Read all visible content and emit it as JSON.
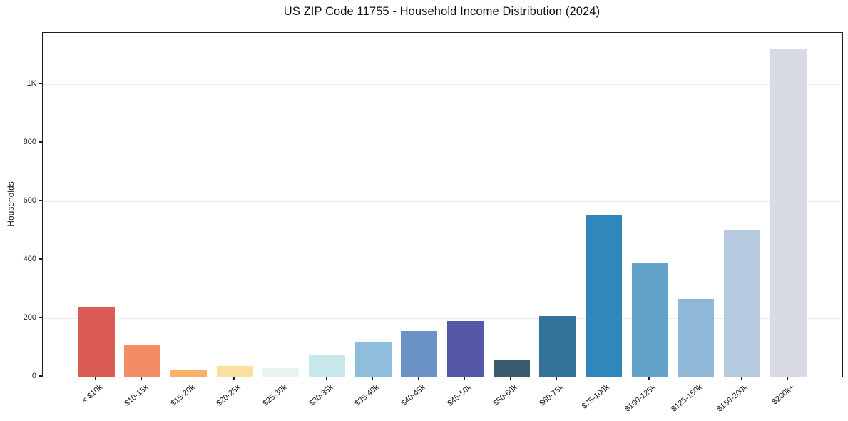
{
  "chart_data": {
    "type": "bar",
    "title": "US ZIP Code 11755 - Household Income Distribution (2024)",
    "xlabel": "",
    "ylabel": "Households",
    "categories": [
      "< $10k",
      "$10-15k",
      "$15-20k",
      "$20-25k",
      "$25-30k",
      "$30-35k",
      "$35-40k",
      "$40-45k",
      "$45-50k",
      "$50-60k",
      "$60-75k",
      "$75-100k",
      "$100-125k",
      "$125-150k",
      "$150-200k",
      "$200k+"
    ],
    "values": [
      238,
      108,
      22,
      36,
      30,
      73,
      120,
      157,
      190,
      58,
      208,
      553,
      391,
      267,
      503,
      1120
    ],
    "bar_colors": [
      "#d95b52",
      "#f28d65",
      "#f7b168",
      "#fbdf9e",
      "#e9f4ef",
      "#c8e7eb",
      "#8fbedd",
      "#6a92c6",
      "#5657a8",
      "#3a5c6f",
      "#327399",
      "#3087bb",
      "#61a3cb",
      "#8fb8d8",
      "#b5c9df",
      "#d8dae6"
    ],
    "yticks": {
      "values": [
        0,
        200,
        400,
        600,
        800,
        1000
      ],
      "labels": [
        "0",
        "200",
        "400",
        "600",
        "800",
        "1K"
      ]
    },
    "ylim": [
      0,
      1176
    ],
    "grid": "horizontal",
    "legend": "none"
  },
  "style": {
    "axis_color": "#1c1c28",
    "grid_color": "#ebebf1",
    "text_color": "#1a1a1a",
    "background": "#ffffff"
  }
}
